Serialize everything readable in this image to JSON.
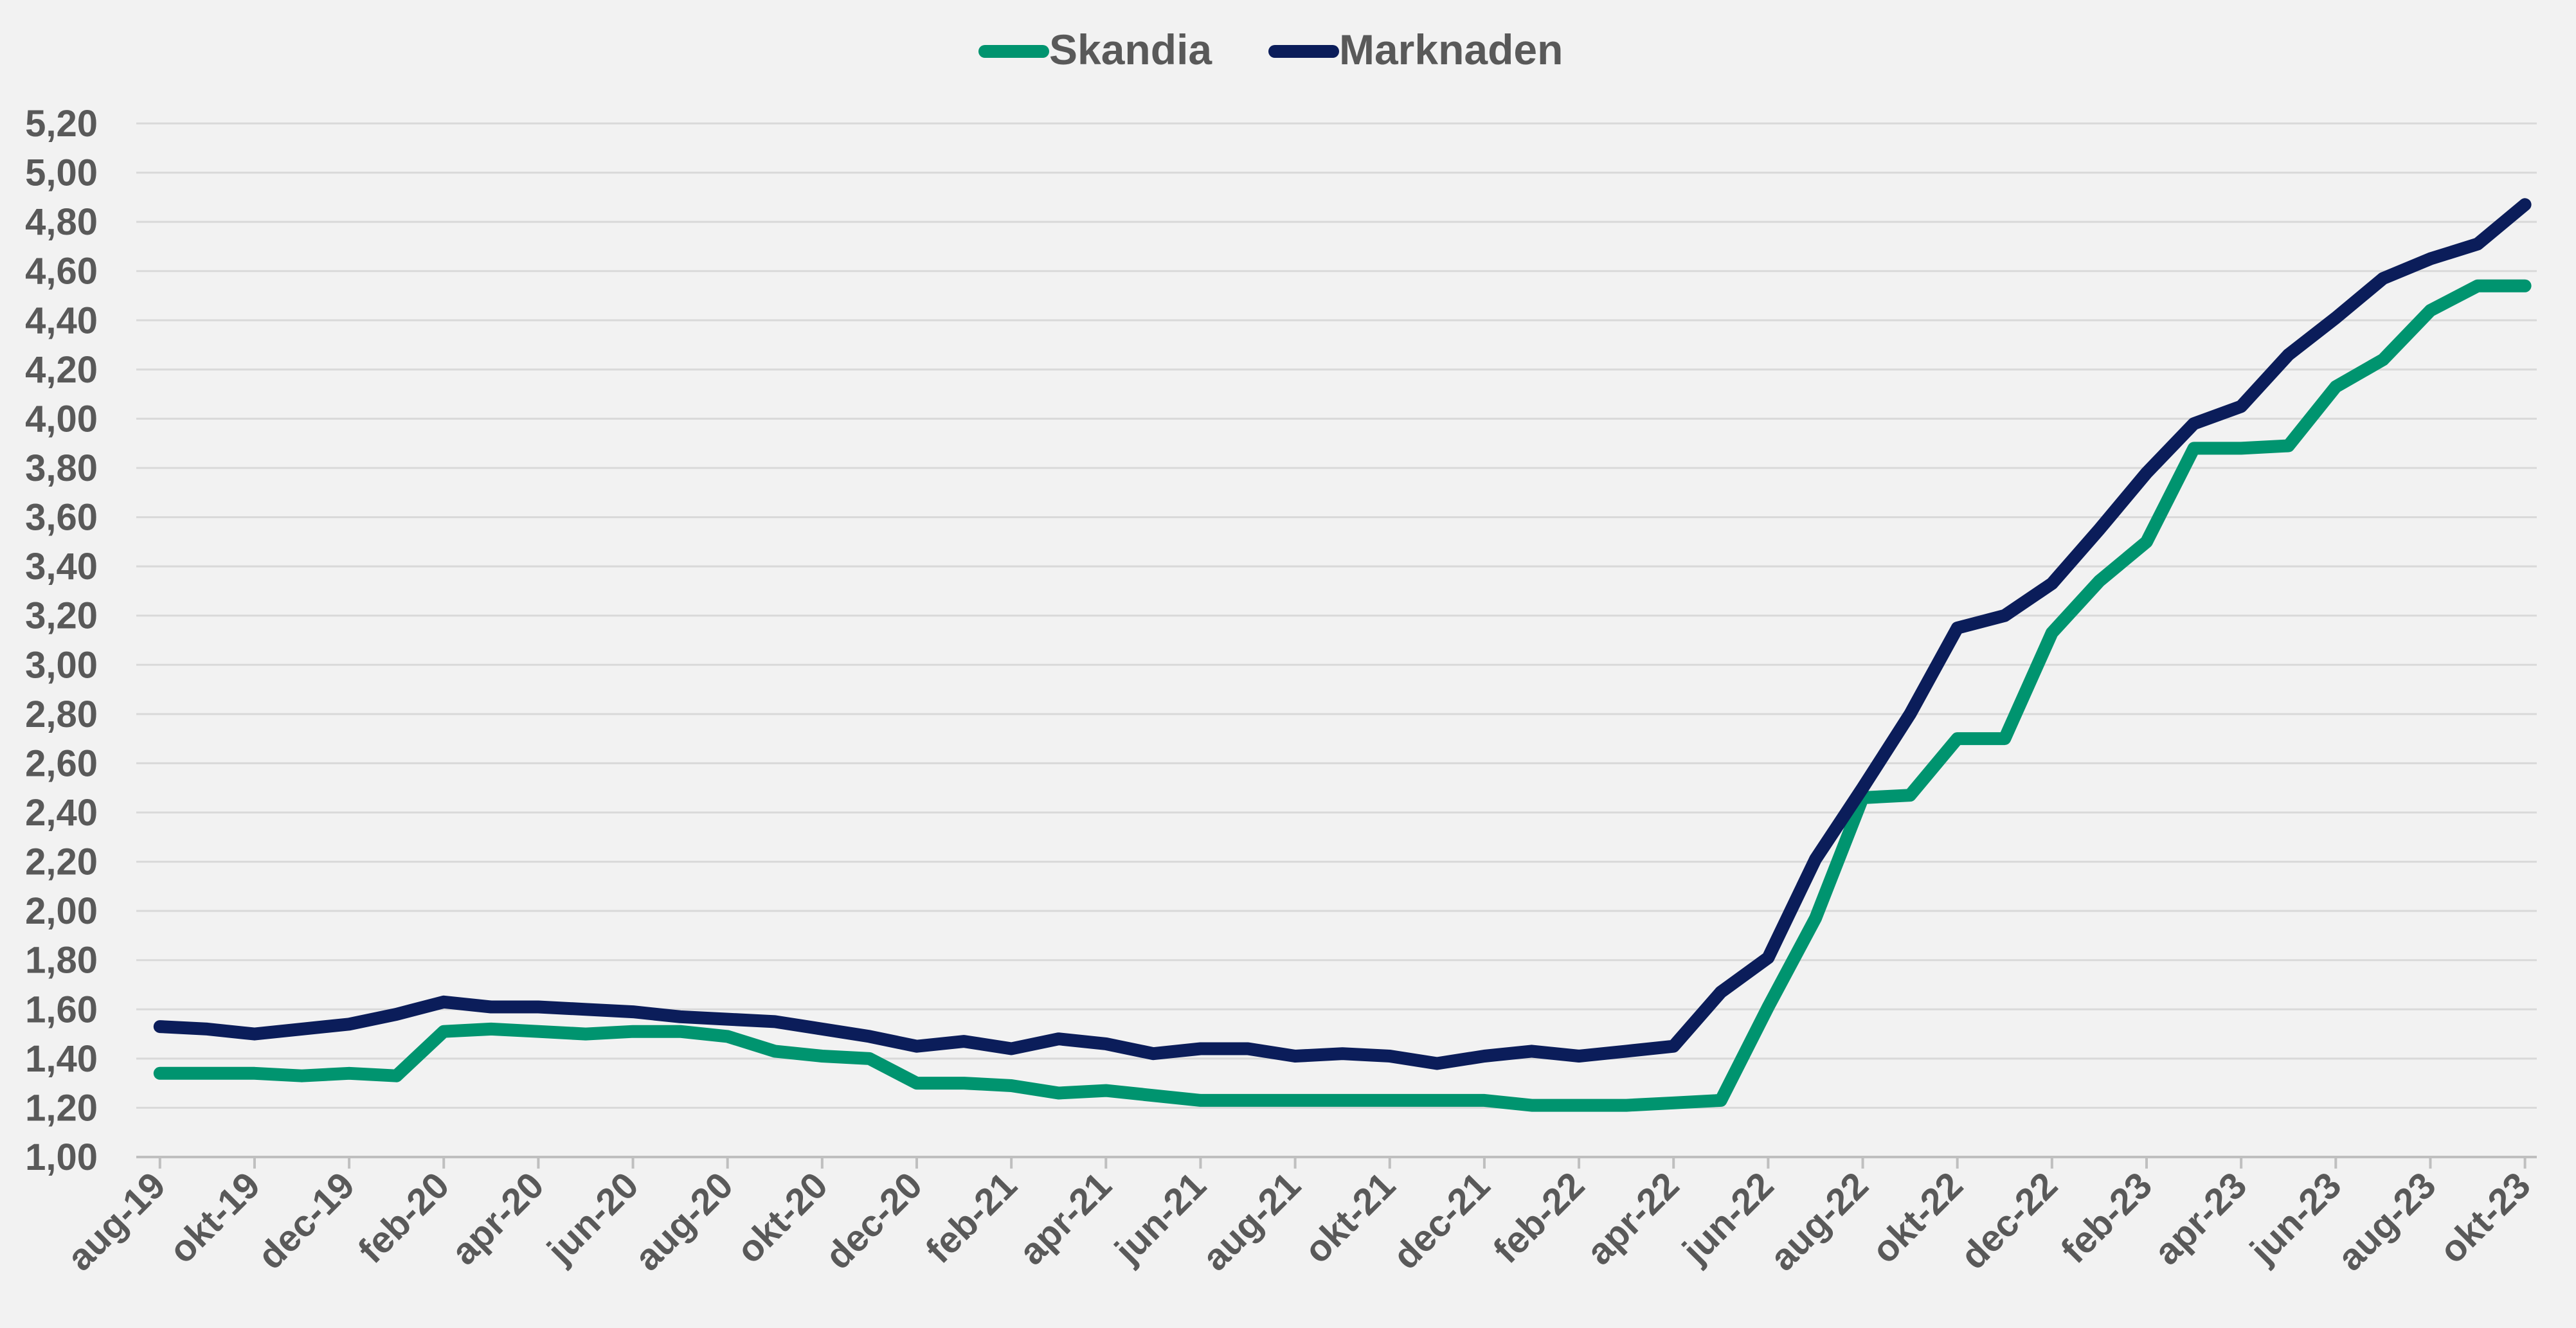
{
  "chart_data": {
    "type": "line",
    "title": "",
    "xlabel": "",
    "ylabel": "",
    "ylim": [
      1.0,
      5.2
    ],
    "y_ticks": [
      "1,00",
      "1,20",
      "1,40",
      "1,60",
      "1,80",
      "2,00",
      "2,20",
      "2,40",
      "2,60",
      "2,80",
      "3,00",
      "3,20",
      "3,40",
      "3,60",
      "3,80",
      "4,00",
      "4,20",
      "4,40",
      "4,60",
      "4,80",
      "5,00",
      "5,20"
    ],
    "grid": true,
    "legend_position": "top-center",
    "x_tick_labels": [
      "aug-19",
      "okt-19",
      "dec-19",
      "feb-20",
      "apr-20",
      "jun-20",
      "aug-20",
      "okt-20",
      "dec-20",
      "feb-21",
      "apr-21",
      "jun-21",
      "aug-21",
      "okt-21",
      "dec-21",
      "feb-22",
      "apr-22",
      "jun-22",
      "aug-22",
      "okt-22",
      "dec-22",
      "feb-23",
      "apr-23",
      "jun-23",
      "aug-23",
      "okt-23"
    ],
    "categories": [
      "aug-19",
      "sep-19",
      "okt-19",
      "nov-19",
      "dec-19",
      "jan-20",
      "feb-20",
      "mar-20",
      "apr-20",
      "maj-20",
      "jun-20",
      "jul-20",
      "aug-20",
      "sep-20",
      "okt-20",
      "nov-20",
      "dec-20",
      "jan-21",
      "feb-21",
      "mar-21",
      "apr-21",
      "maj-21",
      "jun-21",
      "jul-21",
      "aug-21",
      "sep-21",
      "okt-21",
      "nov-21",
      "dec-21",
      "jan-22",
      "feb-22",
      "mar-22",
      "apr-22",
      "maj-22",
      "jun-22",
      "jul-22",
      "aug-22",
      "sep-22",
      "okt-22",
      "nov-22",
      "dec-22",
      "jan-23",
      "feb-23",
      "mar-23",
      "apr-23",
      "maj-23",
      "jun-23",
      "jul-23",
      "aug-23",
      "sep-23",
      "okt-23"
    ],
    "series": [
      {
        "name": "Skandia",
        "color": "#00946f",
        "values": [
          1.34,
          1.34,
          1.34,
          1.33,
          1.34,
          1.33,
          1.51,
          1.52,
          1.51,
          1.5,
          1.51,
          1.51,
          1.49,
          1.43,
          1.41,
          1.4,
          1.3,
          1.3,
          1.29,
          1.26,
          1.27,
          1.25,
          1.23,
          1.23,
          1.23,
          1.23,
          1.23,
          1.23,
          1.23,
          1.21,
          1.21,
          1.21,
          1.22,
          1.23,
          1.61,
          1.97,
          2.46,
          2.47,
          2.7,
          2.7,
          3.13,
          3.34,
          3.5,
          3.88,
          3.88,
          3.89,
          4.13,
          4.24,
          4.44,
          4.54,
          4.54
        ]
      },
      {
        "name": "Marknaden",
        "color": "#0b1d5a",
        "values": [
          1.53,
          1.52,
          1.5,
          1.52,
          1.54,
          1.58,
          1.63,
          1.61,
          1.61,
          1.6,
          1.59,
          1.57,
          1.56,
          1.55,
          1.52,
          1.49,
          1.45,
          1.47,
          1.44,
          1.48,
          1.46,
          1.42,
          1.44,
          1.44,
          1.41,
          1.42,
          1.41,
          1.38,
          1.41,
          1.43,
          1.41,
          1.43,
          1.45,
          1.67,
          1.81,
          2.21,
          2.5,
          2.8,
          3.15,
          3.2,
          3.33,
          3.55,
          3.78,
          3.98,
          4.05,
          4.26,
          4.41,
          4.57,
          4.65,
          4.71,
          4.87
        ]
      }
    ]
  }
}
